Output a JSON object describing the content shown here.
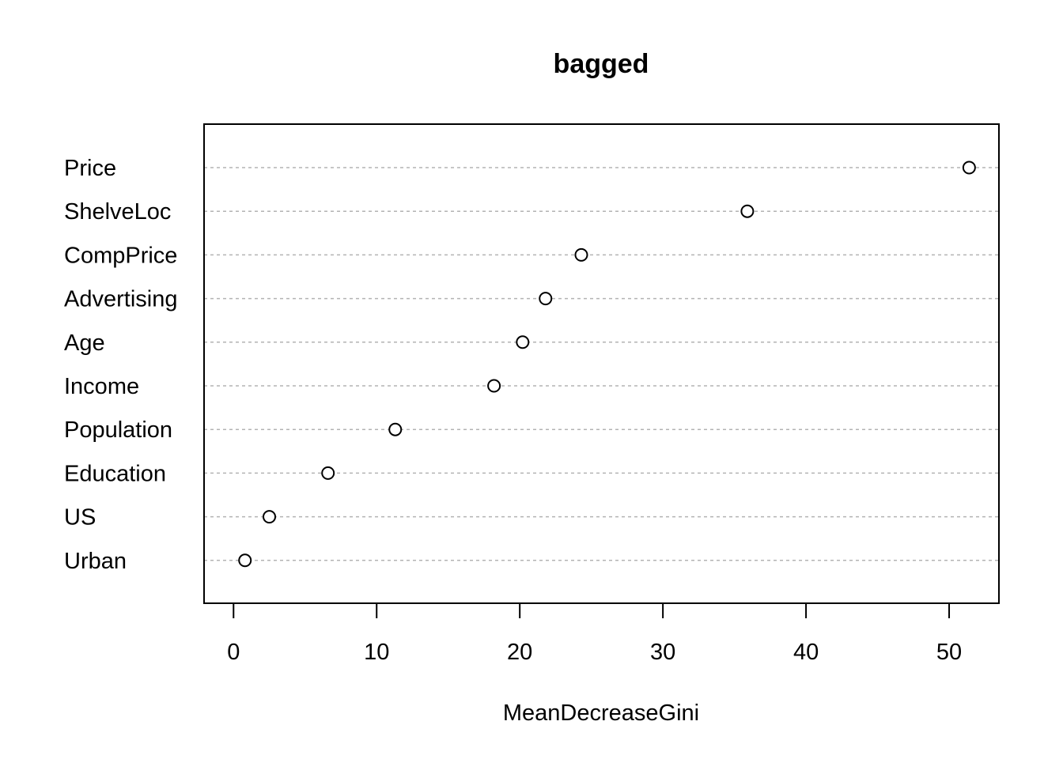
{
  "chart_data": {
    "type": "scatter",
    "title": "bagged",
    "xlabel": "MeanDecreaseGini",
    "ylabel": "",
    "categories": [
      "Price",
      "ShelveLoc",
      "CompPrice",
      "Advertising",
      "Age",
      "Income",
      "Population",
      "Education",
      "US",
      "Urban"
    ],
    "values": [
      51.4,
      35.9,
      24.3,
      21.8,
      20.2,
      18.2,
      11.3,
      6.6,
      2.5,
      0.8
    ],
    "xlim": [
      -2.06,
      53.48
    ],
    "xticks": [
      0,
      10,
      20,
      30,
      40,
      50
    ],
    "grid": "horizontal dotted guide lines",
    "legend": "none"
  }
}
